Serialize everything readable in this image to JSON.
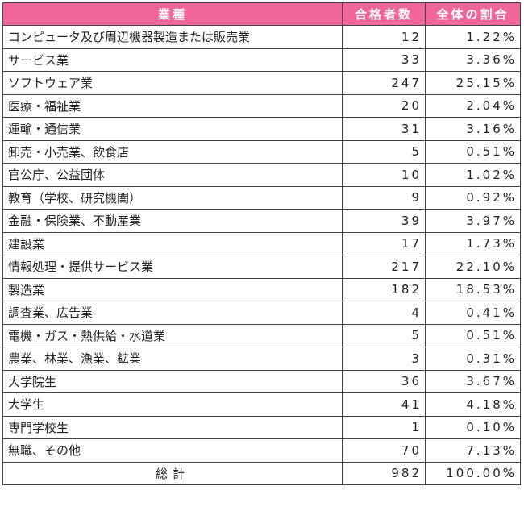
{
  "table": {
    "header": [
      "業種",
      "合格者数",
      "全体の割合"
    ],
    "rows": [
      [
        "コンピュータ及び周辺機器製造または販売業",
        12,
        "1.22%"
      ],
      [
        "サービス業",
        33,
        "3.36%"
      ],
      [
        "ソフトウェア業",
        247,
        "25.15%"
      ],
      [
        "医療・福祉業",
        20,
        "2.04%"
      ],
      [
        "運輸・通信業",
        31,
        "3.16%"
      ],
      [
        "卸売・小売業、飲食店",
        5,
        "0.51%"
      ],
      [
        "官公庁、公益団体",
        10,
        "1.02%"
      ],
      [
        "教育（学校、研究機関）",
        9,
        "0.92%"
      ],
      [
        "金融・保険業、不動産業",
        39,
        "3.97%"
      ],
      [
        "建設業",
        17,
        "1.73%"
      ],
      [
        "情報処理・提供サービス業",
        217,
        "22.10%"
      ],
      [
        "製造業",
        182,
        "18.53%"
      ],
      [
        "調査業、広告業",
        4,
        "0.41%"
      ],
      [
        "電機・ガス・熱供給・水道業",
        5,
        "0.51%"
      ],
      [
        "農業、林業、漁業、鉱業",
        3,
        "0.31%"
      ],
      [
        "大学院生",
        36,
        "3.67%"
      ],
      [
        "大学生",
        41,
        "4.18%"
      ],
      [
        "専門学校生",
        1,
        "0.10%"
      ],
      [
        "無職、その他",
        70,
        "7.13%"
      ]
    ],
    "total": [
      "総計",
      982,
      "100.00%"
    ]
  }
}
